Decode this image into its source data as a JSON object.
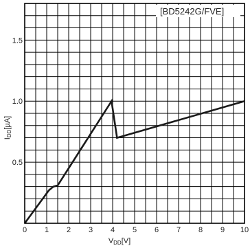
{
  "chart_data": {
    "type": "line",
    "annotation": "[BD5242G/FVE]",
    "xlabel": "V_DD[V]",
    "ylabel": "I_DD[µA]",
    "xlabel_main": "V",
    "xlabel_sub": "DD",
    "xlabel_unit": "[V]",
    "ylabel_main": "I",
    "ylabel_sub": "DD",
    "ylabel_unit": "[µA]",
    "xlim": [
      0,
      10
    ],
    "ylim": [
      0,
      1.8
    ],
    "xticks": [
      "0",
      "1",
      "2",
      "3",
      "4",
      "5",
      "6",
      "7",
      "8",
      "9",
      "10"
    ],
    "yticks": [
      {
        "v": 0.5,
        "label": "0.5"
      },
      {
        "v": 1.0,
        "label": "1.0"
      },
      {
        "v": 1.5,
        "label": "1.5"
      }
    ],
    "grid": true,
    "series": [
      {
        "color": "#1a1a1a",
        "points": [
          [
            0,
            0
          ],
          [
            1.1,
            0.27
          ],
          [
            1.3,
            0.3
          ],
          [
            1.5,
            0.31
          ],
          [
            3.95,
            1.0
          ],
          [
            4.2,
            0.7
          ],
          [
            10,
            1.0
          ]
        ]
      }
    ]
  }
}
